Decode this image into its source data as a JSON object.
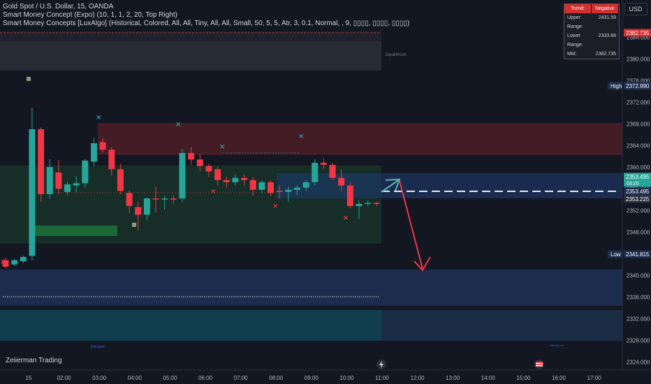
{
  "legend": {
    "symbol_line": "Gold Spot / U.S. Dollar, 15, OANDA",
    "indicator1": "Smart Money Concept (Expo) (10, 1, 1, 2, 20, Top Right)",
    "indicator2": "Smart Money Concepts [LuxAlgo] (Historical, Colored, All, All, Tiny, All, All, Small, 50, 5, 5, Atr, 3, 0.1, Normal, , 9, ▯▯▯▯, ▯▯▯▯, ▯▯▯▯)"
  },
  "currency": "USD",
  "trend_table": {
    "headers": [
      "Trend:",
      "Negative"
    ],
    "rows": [
      {
        "label": "Upper Range:",
        "value": "2431.59"
      },
      {
        "label": "Lower Range:",
        "value": "2333.88"
      },
      {
        "label": "Mid:",
        "value": "2382.735"
      }
    ]
  },
  "watermark": "Zeiierman Trading",
  "zone_labels": {
    "equilibrium": "Equilibrium",
    "discount": "Discount",
    "strong_low": "Strong Low"
  },
  "price_axis": {
    "ticks": [
      "2384.000",
      "2380.000",
      "2376.000",
      "2372.000",
      "2368.000",
      "2364.000",
      "2360.000",
      "2356.000",
      "2352.000",
      "2348.000",
      "2344.000",
      "2340.000",
      "2336.000",
      "2332.000",
      "2328.000",
      "2324.000"
    ],
    "badges": [
      {
        "text": "2382.735",
        "bg": "#d32f2f"
      },
      {
        "text": "2372.990",
        "bg": "#1e2d4d",
        "tag": "High"
      },
      {
        "text": "2353.495",
        "bg": "#26a69a",
        "sub": "03:20"
      },
      {
        "text": "2353.495",
        "bg": "#1e2d4d"
      },
      {
        "text": "2353.225",
        "bg": "#2a2e39"
      },
      {
        "text": "2341.815",
        "bg": "#1e2d4d",
        "tag": "Low"
      }
    ]
  },
  "time_axis": {
    "labels": [
      "15",
      "02:00",
      "03:00",
      "04:00",
      "05:00",
      "06:00",
      "07:00",
      "08:00",
      "09:00",
      "10:00",
      "11:00",
      "12:00",
      "13:00",
      "14:00",
      "15:00",
      "16:00",
      "17:00"
    ]
  },
  "colors": {
    "up": "#26a69a",
    "down": "#f23645",
    "bg": "#131722"
  },
  "chart_data": {
    "type": "candlestick",
    "y_range": [
      2322.5,
      2387
    ],
    "candles": [
      {
        "t": "00:45",
        "o": 2342.8,
        "h": 2343.2,
        "l": 2341.3,
        "c": 2341.6
      },
      {
        "t": "01:00",
        "o": 2342.0,
        "h": 2343.0,
        "l": 2341.7,
        "c": 2342.8
      },
      {
        "t": "01:15",
        "o": 2342.6,
        "h": 2343.6,
        "l": 2342.2,
        "c": 2343.4
      },
      {
        "t": "01:30",
        "o": 2343.6,
        "h": 2371.0,
        "l": 2342.8,
        "c": 2367.0
      },
      {
        "t": "01:45",
        "o": 2367.0,
        "h": 2367.3,
        "l": 2353.6,
        "c": 2355.0
      },
      {
        "t": "02:00",
        "o": 2355.0,
        "h": 2361.5,
        "l": 2354.2,
        "c": 2360.0
      },
      {
        "t": "02:15",
        "o": 2359.0,
        "h": 2361.3,
        "l": 2355.0,
        "c": 2356.0
      },
      {
        "t": "02:30",
        "o": 2355.4,
        "h": 2357.3,
        "l": 2354.8,
        "c": 2356.8
      },
      {
        "t": "02:45",
        "o": 2356.6,
        "h": 2358.3,
        "l": 2355.4,
        "c": 2357.0
      },
      {
        "t": "03:00",
        "o": 2357.0,
        "h": 2361.5,
        "l": 2356.2,
        "c": 2361.2
      },
      {
        "t": "03:15",
        "o": 2361.0,
        "h": 2365.4,
        "l": 2360.2,
        "c": 2364.4
      },
      {
        "t": "03:30",
        "o": 2364.6,
        "h": 2365.4,
        "l": 2362.6,
        "c": 2363.2
      },
      {
        "t": "03:45",
        "o": 2363.2,
        "h": 2363.7,
        "l": 2358.4,
        "c": 2359.6
      },
      {
        "t": "04:00",
        "o": 2359.6,
        "h": 2360.6,
        "l": 2355.0,
        "c": 2355.6
      },
      {
        "t": "04:15",
        "o": 2355.2,
        "h": 2355.7,
        "l": 2351.5,
        "c": 2352.8
      },
      {
        "t": "04:30",
        "o": 2352.6,
        "h": 2353.6,
        "l": 2348.3,
        "c": 2351.2
      },
      {
        "t": "04:45",
        "o": 2351.2,
        "h": 2354.4,
        "l": 2350.2,
        "c": 2354.2
      },
      {
        "t": "05:00",
        "o": 2354.2,
        "h": 2356.4,
        "l": 2351.6,
        "c": 2354.0
      },
      {
        "t": "05:15",
        "o": 2354.0,
        "h": 2354.6,
        "l": 2352.2,
        "c": 2354.2
      },
      {
        "t": "05:30",
        "o": 2354.2,
        "h": 2354.7,
        "l": 2353.2,
        "c": 2354.0
      },
      {
        "t": "05:45",
        "o": 2354.2,
        "h": 2363.4,
        "l": 2353.6,
        "c": 2362.6
      },
      {
        "t": "06:00",
        "o": 2362.6,
        "h": 2363.7,
        "l": 2360.4,
        "c": 2361.4
      },
      {
        "t": "06:15",
        "o": 2361.4,
        "h": 2362.4,
        "l": 2359.2,
        "c": 2360.2
      },
      {
        "t": "06:30",
        "o": 2360.2,
        "h": 2360.6,
        "l": 2358.2,
        "c": 2359.2
      },
      {
        "t": "06:45",
        "o": 2359.6,
        "h": 2360.0,
        "l": 2356.6,
        "c": 2357.6
      },
      {
        "t": "07:00",
        "o": 2357.6,
        "h": 2358.2,
        "l": 2356.2,
        "c": 2357.2
      },
      {
        "t": "07:15",
        "o": 2357.2,
        "h": 2358.6,
        "l": 2356.6,
        "c": 2358.0
      },
      {
        "t": "07:30",
        "o": 2358.0,
        "h": 2358.6,
        "l": 2356.6,
        "c": 2357.6
      },
      {
        "t": "07:45",
        "o": 2357.6,
        "h": 2358.2,
        "l": 2354.7,
        "c": 2355.8
      },
      {
        "t": "08:00",
        "o": 2355.8,
        "h": 2357.6,
        "l": 2355.2,
        "c": 2357.2
      },
      {
        "t": "08:15",
        "o": 2357.2,
        "h": 2357.6,
        "l": 2354.6,
        "c": 2355.2
      },
      {
        "t": "08:30",
        "o": 2355.6,
        "h": 2356.6,
        "l": 2354.2,
        "c": 2355.4
      },
      {
        "t": "08:45",
        "o": 2355.4,
        "h": 2356.4,
        "l": 2353.6,
        "c": 2355.8
      },
      {
        "t": "09:00",
        "o": 2355.8,
        "h": 2356.6,
        "l": 2354.8,
        "c": 2356.2
      },
      {
        "t": "09:15",
        "o": 2356.2,
        "h": 2357.6,
        "l": 2355.6,
        "c": 2357.2
      },
      {
        "t": "09:30",
        "o": 2357.2,
        "h": 2361.4,
        "l": 2356.6,
        "c": 2360.8
      },
      {
        "t": "09:45",
        "o": 2360.8,
        "h": 2361.6,
        "l": 2359.6,
        "c": 2360.4
      },
      {
        "t": "10:00",
        "o": 2360.4,
        "h": 2360.8,
        "l": 2357.6,
        "c": 2358.0
      },
      {
        "t": "10:15",
        "o": 2358.0,
        "h": 2359.6,
        "l": 2355.6,
        "c": 2356.6
      },
      {
        "t": "10:30",
        "o": 2356.6,
        "h": 2357.2,
        "l": 2352.4,
        "c": 2352.8
      },
      {
        "t": "10:45",
        "o": 2352.8,
        "h": 2353.8,
        "l": 2350.4,
        "c": 2353.2
      },
      {
        "t": "11:00",
        "o": 2353.2,
        "h": 2353.8,
        "l": 2352.8,
        "c": 2353.4
      },
      {
        "t": "11:15",
        "o": 2353.4,
        "h": 2353.6,
        "l": 2352.8,
        "c": 2353.2
      }
    ]
  }
}
